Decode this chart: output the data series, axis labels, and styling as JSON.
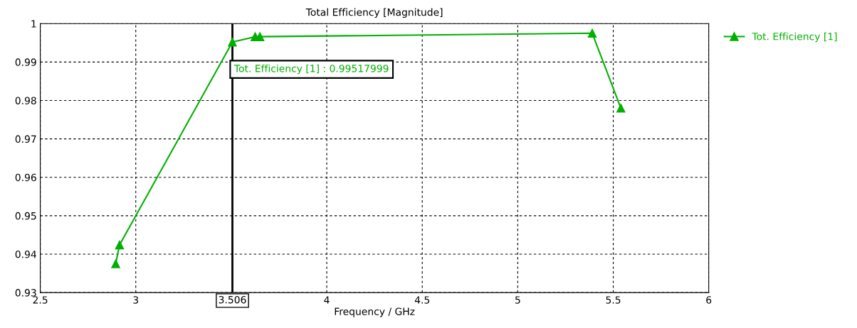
{
  "chart_data": {
    "type": "line",
    "title": "Total Efficiency [Magnitude]",
    "xlabel": "Frequency / GHz",
    "x": [
      2.895,
      2.915,
      3.506,
      3.625,
      3.65,
      5.39,
      5.54
    ],
    "series": [
      {
        "name": "Tot. Efficiency [1]",
        "color": "#00b000",
        "values": [
          0.9375,
          0.9424,
          0.9952,
          0.9966,
          0.9966,
          0.9975,
          0.978
        ]
      }
    ],
    "xlim": [
      2.5,
      6
    ],
    "xticks": [
      2.5,
      3,
      4,
      4.5,
      5,
      5.5,
      6
    ],
    "ylim": [
      0.93,
      1
    ],
    "yticks": [
      0.93,
      0.94,
      0.95,
      0.96,
      0.97,
      0.98,
      0.99,
      1
    ],
    "ref_lines": [
      {
        "axis": "x",
        "value": 3.506,
        "label": "3.506",
        "color": "#000000"
      }
    ],
    "annotations": [
      "Tot. Efficiency [1] : 0.99517999"
    ],
    "grid": true,
    "legend": "top right",
    "marker": "triangle",
    "line_style": "solid"
  }
}
